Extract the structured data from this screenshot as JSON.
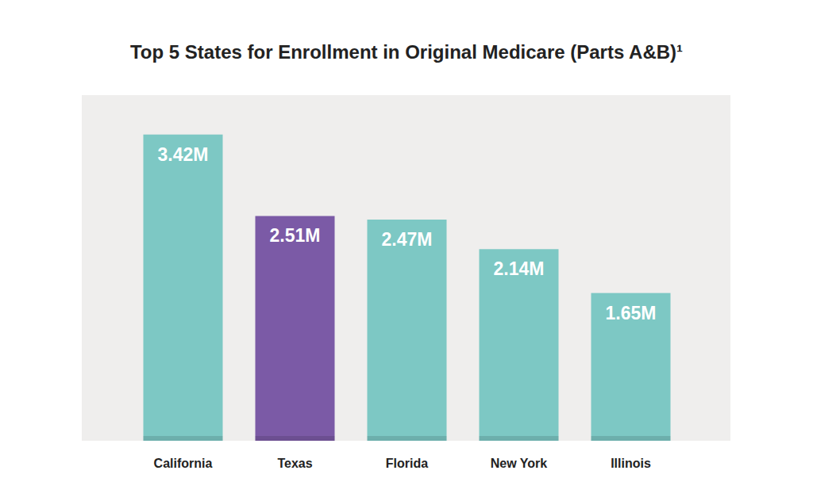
{
  "chart_data": {
    "type": "bar",
    "title": "Top 5 States for Enrollment in Original Medicare (Parts A&B)¹",
    "categories": [
      "California",
      "Texas",
      "Florida",
      "New York",
      "Illinois"
    ],
    "values": [
      3.42,
      2.51,
      2.47,
      2.14,
      1.65
    ],
    "value_labels": [
      "3.42M",
      "2.51M",
      "2.47M",
      "2.14M",
      "1.65M"
    ],
    "colors": [
      "#7dc8c4",
      "#7b5aa6",
      "#7dc8c4",
      "#7dc8c4",
      "#7dc8c4"
    ],
    "ylim": [
      0,
      3.86
    ],
    "grid": false,
    "data_labels": true,
    "tick_labels": "x"
  }
}
